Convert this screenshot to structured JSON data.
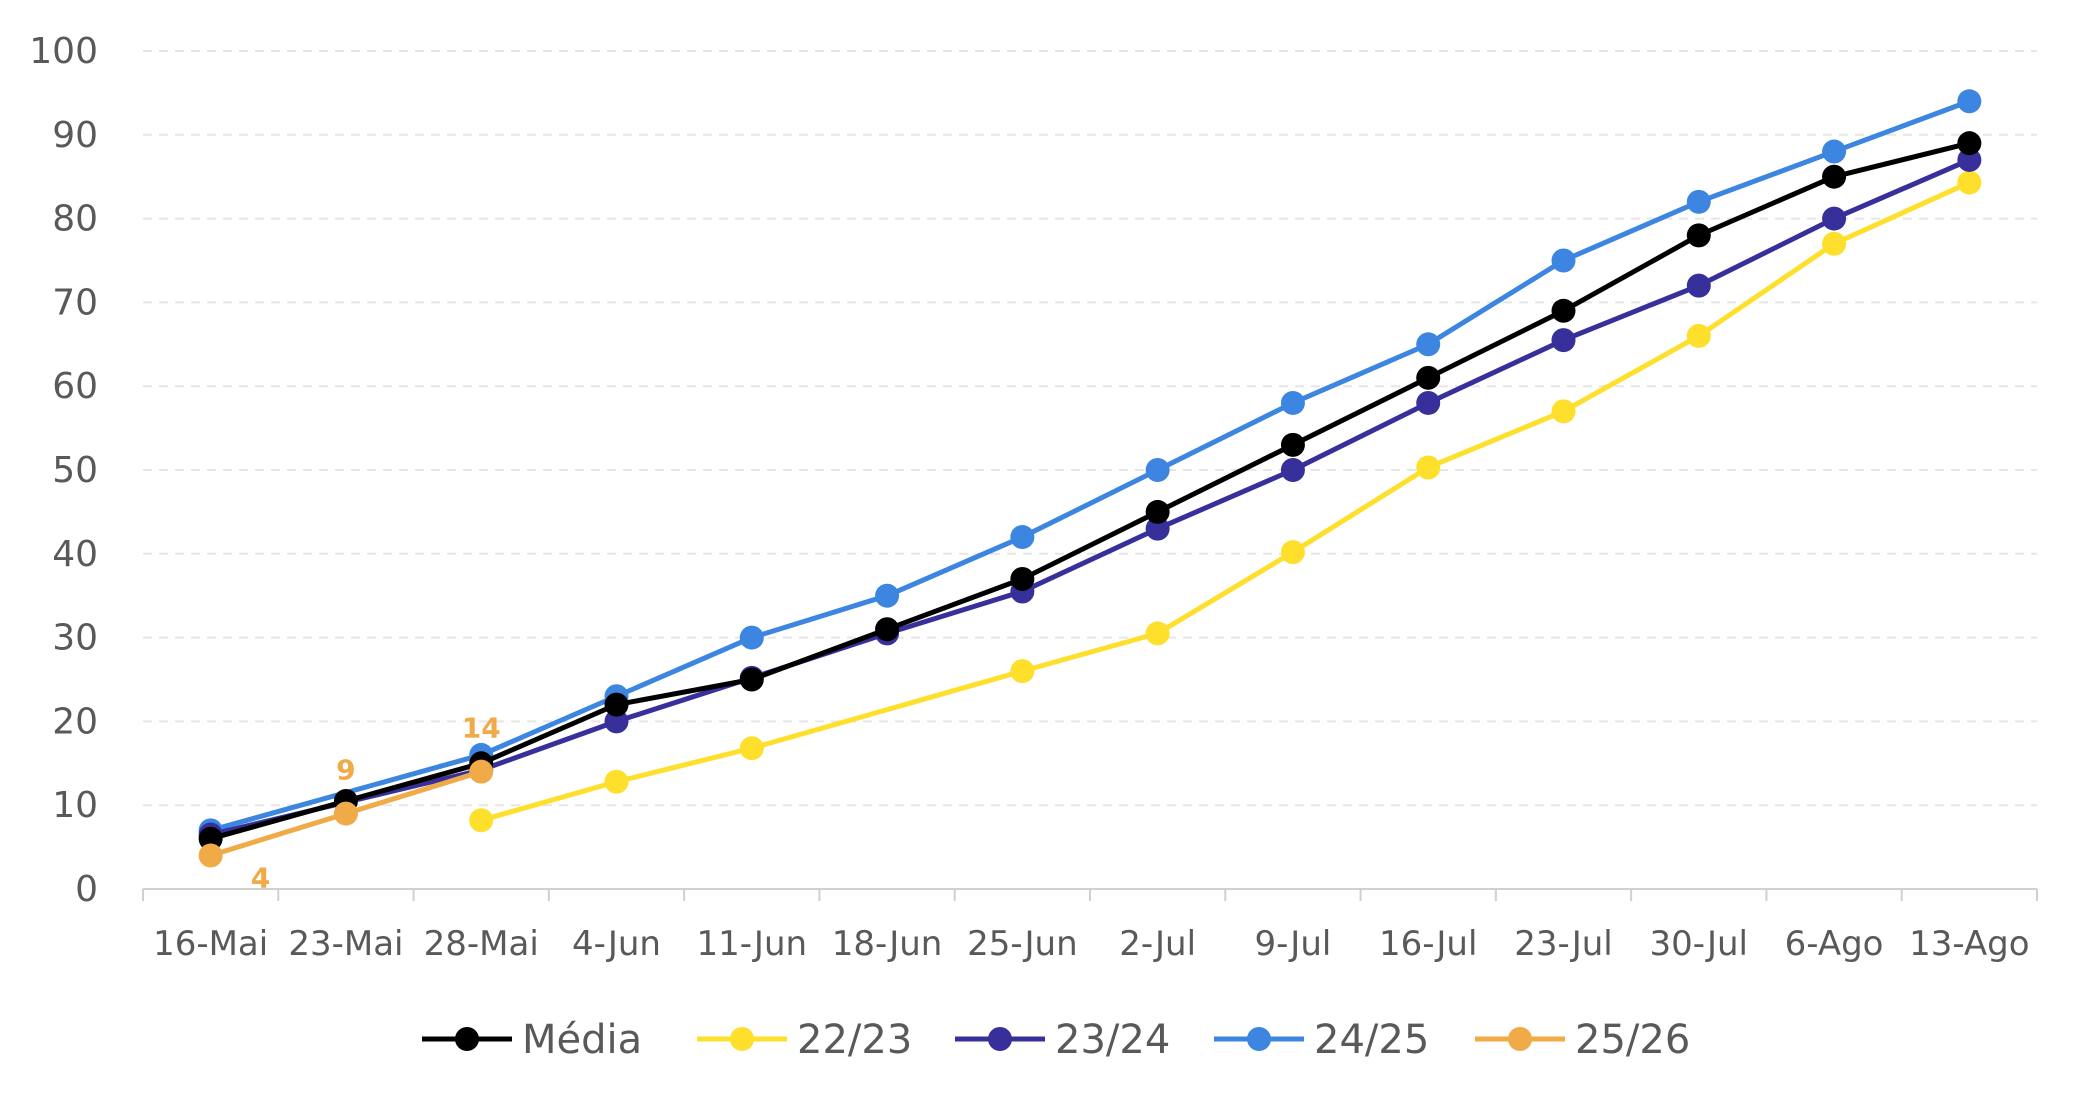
{
  "chart_data": {
    "type": "line",
    "title": "",
    "xlabel": "",
    "ylabel": "",
    "categories": [
      "16-Mai",
      "23-Mai",
      "28-Mai",
      "4-Jun",
      "11-Jun",
      "18-Jun",
      "25-Jun",
      "2-Jul",
      "9-Jul",
      "16-Jul",
      "23-Jul",
      "30-Jul",
      "6-Ago",
      "13-Ago"
    ],
    "ylim": [
      0,
      100
    ],
    "yticks": [
      "0",
      "10",
      "20",
      "30",
      "40",
      "50",
      "60",
      "70",
      "80",
      "90",
      "100"
    ],
    "grid": "horizontal-dashed",
    "legend_position": "bottom",
    "series": [
      {
        "name": "Média",
        "color": "#000000",
        "values": [
          6,
          10.5,
          15,
          22,
          25,
          31,
          37,
          45,
          53,
          61,
          69,
          78,
          85,
          89
        ]
      },
      {
        "name": "22/23",
        "color": "#FDDF2C",
        "values": [
          null,
          null,
          8.2,
          12.8,
          16.8,
          null,
          26,
          30.5,
          40.2,
          50.3,
          57,
          66,
          77,
          84.3
        ]
      },
      {
        "name": "23/24",
        "color": "#38309A",
        "values": [
          6.5,
          null,
          14.2,
          20,
          25.2,
          30.5,
          35.5,
          43,
          50,
          58,
          65.5,
          72,
          80,
          87
        ]
      },
      {
        "name": "24/25",
        "color": "#3C85E0",
        "values": [
          7,
          null,
          16,
          23,
          30,
          35,
          42,
          50,
          58,
          65,
          75,
          82,
          88,
          94
        ]
      },
      {
        "name": "25/26",
        "color": "#F0AA47",
        "values": [
          4,
          9,
          14,
          null,
          null,
          null,
          null,
          null,
          null,
          null,
          null,
          null,
          null,
          null
        ],
        "data_labels": [
          "4",
          "9",
          "14"
        ]
      }
    ]
  }
}
